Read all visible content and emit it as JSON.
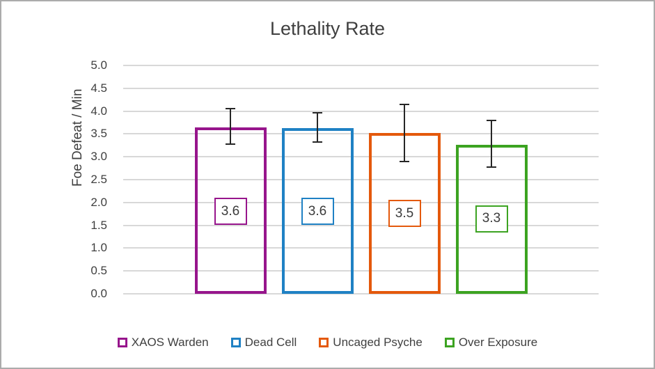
{
  "chart_data": {
    "type": "bar",
    "title": "Lethality Rate",
    "xlabel": "",
    "ylabel": "Foe Defeat / Min",
    "ylim": [
      0,
      5
    ],
    "ytick_step": 0.5,
    "grid": true,
    "legend_position": "bottom",
    "bar_style": "outlined-unfilled",
    "series": [
      {
        "name": "XAOS Warden",
        "value": 3.65,
        "data_label": "3.6",
        "color": "#97158C",
        "error_high": 4.05,
        "error_low": 3.27,
        "label_center_value": 1.8
      },
      {
        "name": "Dead Cell",
        "value": 3.63,
        "data_label": "3.6",
        "color": "#1F81C4",
        "error_high": 3.97,
        "error_low": 3.32,
        "label_center_value": 1.8
      },
      {
        "name": "Uncaged Psyche",
        "value": 3.52,
        "data_label": "3.5",
        "color": "#E4590C",
        "error_high": 4.15,
        "error_low": 2.89,
        "label_center_value": 1.76
      },
      {
        "name": "Over Exposure",
        "value": 3.27,
        "data_label": "3.3",
        "color": "#3CA321",
        "error_high": 3.8,
        "error_low": 2.77,
        "label_center_value": 1.64
      }
    ]
  },
  "colors": {
    "text": "#3f3f3f",
    "gridline": "#D8D8D8",
    "error_bar": "#262626",
    "frame_border": "#ABABAB",
    "background": "#FFFFFF"
  }
}
